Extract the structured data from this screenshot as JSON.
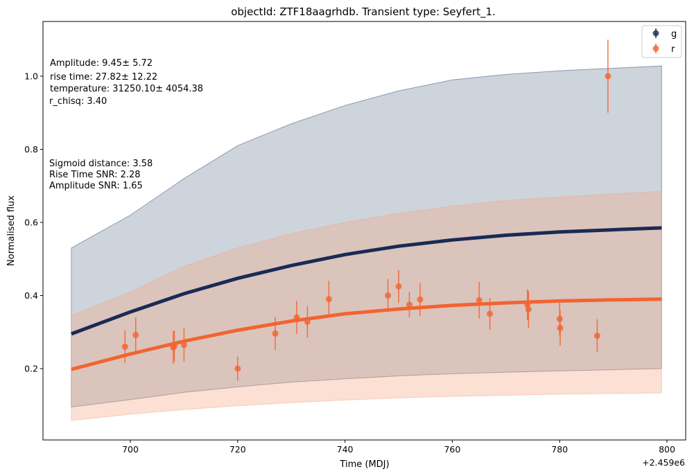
{
  "chart_data": {
    "type": "scatter",
    "title": "objectId: ZTF18aagrhdb. Transient type: Seyfert_1.",
    "xlabel": "Time (MDJ)",
    "ylabel": "Normalised flux",
    "x_offset_label": "+2.459e6",
    "xlim": [
      684,
      800
    ],
    "ylim": [
      0.0,
      1.15
    ],
    "x_ticks": [
      700,
      720,
      740,
      760,
      780,
      800
    ],
    "y_ticks": [
      0.2,
      0.4,
      0.6,
      0.8,
      1.0
    ],
    "x_tick_labels": [
      "700",
      "720",
      "740",
      "760",
      "780",
      "800"
    ],
    "y_tick_labels": [
      "0.2",
      "0.4",
      "0.6",
      "0.8",
      "1.0"
    ],
    "legend": {
      "position": "top-right",
      "entries": [
        "g",
        "r"
      ]
    },
    "annotations": {
      "amplitude": "Amplitude: 9.45± 5.72",
      "rise_time": "rise time: 27.82± 12.22",
      "temperature": "temperature: 31250.10± 4054.38",
      "r_chisq": "r_chisq: 3.40",
      "sigmoid_distance": "Sigmoid distance: 3.58",
      "rise_time_snr": "Rise Time SNR: 2.28",
      "amplitude_snr": "Amplitude SNR: 1.65"
    },
    "series": [
      {
        "name": "g",
        "color": "#1a2a55",
        "band_color": "#1f3a5f",
        "model_x": [
          689,
          700,
          710,
          720,
          730,
          740,
          750,
          760,
          770,
          780,
          790,
          799
        ],
        "model_y": [
          0.295,
          0.355,
          0.405,
          0.447,
          0.482,
          0.512,
          0.535,
          0.552,
          0.565,
          0.574,
          0.58,
          0.585
        ],
        "band_x": [
          689,
          700,
          710,
          720,
          730,
          740,
          750,
          760,
          770,
          780,
          790,
          799
        ],
        "band_upper": [
          0.53,
          0.62,
          0.72,
          0.81,
          0.87,
          0.92,
          0.96,
          0.99,
          1.005,
          1.015,
          1.022,
          1.028
        ],
        "band_lower": [
          0.095,
          0.115,
          0.135,
          0.15,
          0.163,
          0.172,
          0.18,
          0.186,
          0.19,
          0.194,
          0.197,
          0.2
        ],
        "points": []
      },
      {
        "name": "r",
        "color": "#f26430",
        "band_color": "#f4a582",
        "model_x": [
          689,
          700,
          710,
          720,
          730,
          740,
          750,
          760,
          770,
          780,
          790,
          799
        ],
        "model_y": [
          0.198,
          0.24,
          0.275,
          0.305,
          0.33,
          0.35,
          0.363,
          0.373,
          0.38,
          0.385,
          0.388,
          0.39
        ],
        "band_x": [
          689,
          700,
          710,
          720,
          730,
          740,
          750,
          760,
          770,
          780,
          790,
          799
        ],
        "band_upper": [
          0.345,
          0.41,
          0.48,
          0.53,
          0.57,
          0.6,
          0.625,
          0.645,
          0.66,
          0.67,
          0.678,
          0.685
        ],
        "band_lower": [
          0.058,
          0.075,
          0.088,
          0.098,
          0.107,
          0.114,
          0.12,
          0.124,
          0.127,
          0.13,
          0.132,
          0.133
        ],
        "points": [
          {
            "x": 699,
            "y": 0.26,
            "err": 0.045
          },
          {
            "x": 701,
            "y": 0.292,
            "err": 0.048
          },
          {
            "x": 708,
            "y": 0.258,
            "err": 0.045
          },
          {
            "x": 708.2,
            "y": 0.262,
            "err": 0.042
          },
          {
            "x": 710,
            "y": 0.265,
            "err": 0.045
          },
          {
            "x": 720,
            "y": 0.2,
            "err": 0.033
          },
          {
            "x": 727,
            "y": 0.296,
            "err": 0.045
          },
          {
            "x": 731,
            "y": 0.34,
            "err": 0.045
          },
          {
            "x": 733,
            "y": 0.328,
            "err": 0.043
          },
          {
            "x": 737,
            "y": 0.39,
            "err": 0.05
          },
          {
            "x": 748,
            "y": 0.4,
            "err": 0.045
          },
          {
            "x": 750,
            "y": 0.425,
            "err": 0.045
          },
          {
            "x": 752,
            "y": 0.375,
            "err": 0.035
          },
          {
            "x": 754,
            "y": 0.389,
            "err": 0.045
          },
          {
            "x": 765,
            "y": 0.387,
            "err": 0.05
          },
          {
            "x": 767,
            "y": 0.35,
            "err": 0.043
          },
          {
            "x": 774,
            "y": 0.375,
            "err": 0.042
          },
          {
            "x": 774.2,
            "y": 0.362,
            "err": 0.05
          },
          {
            "x": 780,
            "y": 0.336,
            "err": 0.045
          },
          {
            "x": 780.1,
            "y": 0.311,
            "err": 0.048
          },
          {
            "x": 787,
            "y": 0.29,
            "err": 0.045
          },
          {
            "x": 789,
            "y": 1.0,
            "err": 0.1
          }
        ]
      }
    ]
  }
}
